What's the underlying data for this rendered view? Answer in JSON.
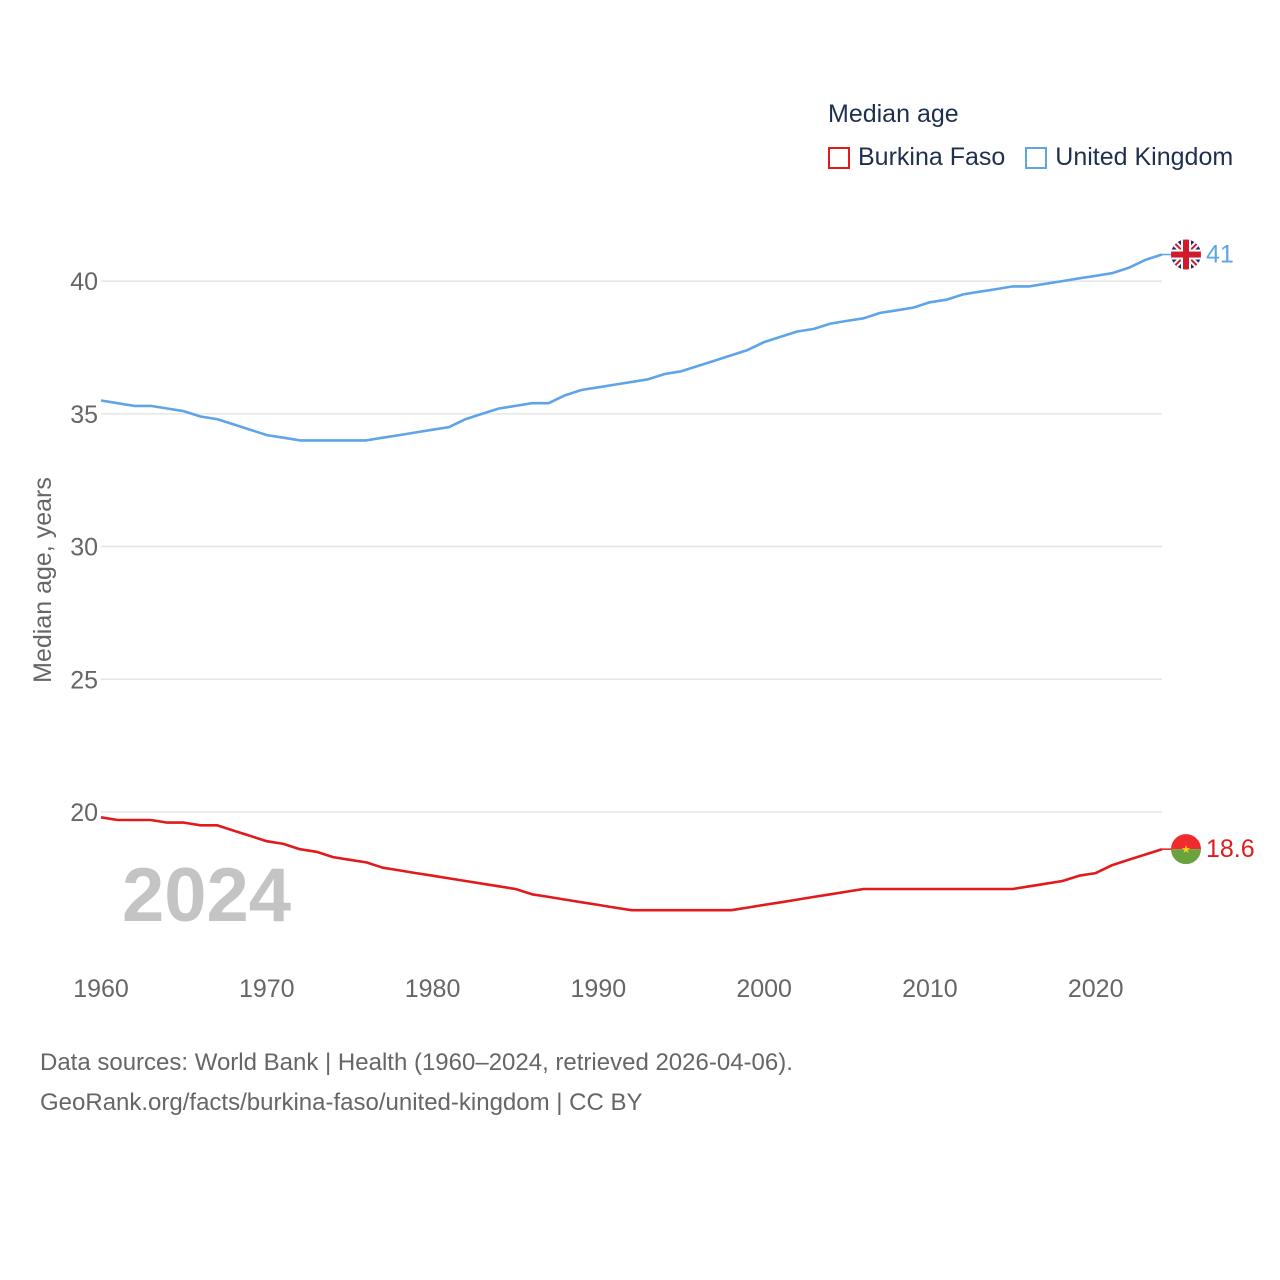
{
  "legend": {
    "title": "Median age",
    "items": [
      {
        "label": "Burkina Faso",
        "color": "#e31a1c"
      },
      {
        "label": "United Kingdom",
        "color": "#5ea4e6"
      }
    ]
  },
  "current_year_label": "2024",
  "footer": {
    "line1": "Data sources: World Bank | Health (1960–2024, retrieved 2026-04-06).",
    "line2": "GeoRank.org/facts/burkina-faso/united-kingdom | CC BY"
  },
  "chart_data": {
    "type": "line",
    "title": "Median age",
    "xlabel": "",
    "ylabel": "Median age, years",
    "xlim": [
      1960,
      2024
    ],
    "ylim": [
      14.5,
      42
    ],
    "x_ticks": [
      1960,
      1970,
      1980,
      1990,
      2000,
      2010,
      2020
    ],
    "y_ticks": [
      20,
      25,
      30,
      35,
      40
    ],
    "grid": true,
    "legend_position": "top-right",
    "x": [
      1960,
      1961,
      1962,
      1963,
      1964,
      1965,
      1966,
      1967,
      1968,
      1969,
      1970,
      1971,
      1972,
      1973,
      1974,
      1975,
      1976,
      1977,
      1978,
      1979,
      1980,
      1981,
      1982,
      1983,
      1984,
      1985,
      1986,
      1987,
      1988,
      1989,
      1990,
      1991,
      1992,
      1993,
      1994,
      1995,
      1996,
      1997,
      1998,
      1999,
      2000,
      2001,
      2002,
      2003,
      2004,
      2005,
      2006,
      2007,
      2008,
      2009,
      2010,
      2011,
      2012,
      2013,
      2014,
      2015,
      2016,
      2017,
      2018,
      2019,
      2020,
      2021,
      2022,
      2023,
      2024
    ],
    "series": [
      {
        "name": "Burkina Faso",
        "color": "#e31a1c",
        "end_label": "18.6",
        "flag": "burkina-faso-flag",
        "values": [
          19.8,
          19.7,
          19.7,
          19.7,
          19.6,
          19.6,
          19.5,
          19.5,
          19.3,
          19.1,
          18.9,
          18.8,
          18.6,
          18.5,
          18.3,
          18.2,
          18.1,
          17.9,
          17.8,
          17.7,
          17.6,
          17.5,
          17.4,
          17.3,
          17.2,
          17.1,
          16.9,
          16.8,
          16.7,
          16.6,
          16.5,
          16.4,
          16.3,
          16.3,
          16.3,
          16.3,
          16.3,
          16.3,
          16.3,
          16.4,
          16.5,
          16.6,
          16.7,
          16.8,
          16.9,
          17.0,
          17.1,
          17.1,
          17.1,
          17.1,
          17.1,
          17.1,
          17.1,
          17.1,
          17.1,
          17.1,
          17.2,
          17.3,
          17.4,
          17.6,
          17.7,
          18.0,
          18.2,
          18.4,
          18.6
        ]
      },
      {
        "name": "United Kingdom",
        "color": "#5ea4e6",
        "end_label": "41",
        "flag": "united-kingdom-flag",
        "values": [
          35.5,
          35.4,
          35.3,
          35.3,
          35.2,
          35.1,
          34.9,
          34.8,
          34.6,
          34.4,
          34.2,
          34.1,
          34.0,
          34.0,
          34.0,
          34.0,
          34.0,
          34.1,
          34.2,
          34.3,
          34.4,
          34.5,
          34.8,
          35.0,
          35.2,
          35.3,
          35.4,
          35.4,
          35.7,
          35.9,
          36.0,
          36.1,
          36.2,
          36.3,
          36.5,
          36.6,
          36.8,
          37.0,
          37.2,
          37.4,
          37.7,
          37.9,
          38.1,
          38.2,
          38.4,
          38.5,
          38.6,
          38.8,
          38.9,
          39.0,
          39.2,
          39.3,
          39.5,
          39.6,
          39.7,
          39.8,
          39.8,
          39.9,
          40.0,
          40.1,
          40.2,
          40.3,
          40.5,
          40.8,
          41.0
        ]
      }
    ]
  }
}
